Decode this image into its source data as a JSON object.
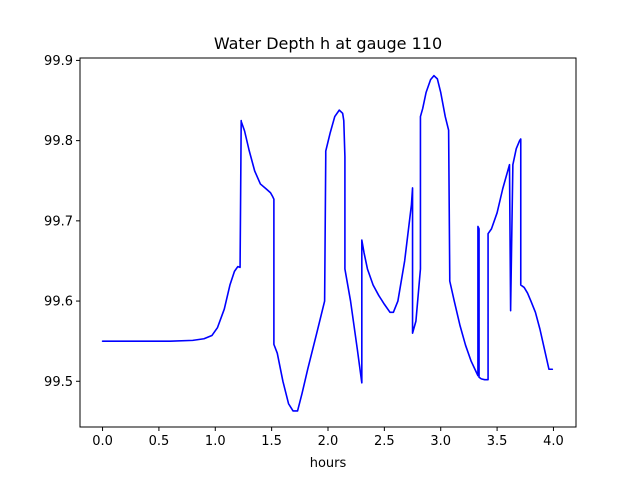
{
  "chart_data": {
    "type": "line",
    "title": "Water Depth h at gauge 110",
    "xlabel": "hours",
    "ylabel": "",
    "xlim": [
      -0.2,
      4.2
    ],
    "ylim": [
      99.443,
      99.903
    ],
    "x_ticks": [
      0.0,
      0.5,
      1.0,
      1.5,
      2.0,
      2.5,
      3.0,
      3.5,
      4.0
    ],
    "x_tick_labels": [
      "0.0",
      "0.5",
      "1.0",
      "1.5",
      "2.0",
      "2.5",
      "3.0",
      "3.5",
      "4.0"
    ],
    "y_ticks": [
      99.5,
      99.6,
      99.7,
      99.8,
      99.9
    ],
    "y_tick_labels": [
      "99.5",
      "99.6",
      "99.7",
      "99.8",
      "99.9"
    ],
    "grid": false,
    "legend": "none",
    "series": [
      {
        "color": "#0000ff",
        "x": [
          0.0,
          0.3,
          0.6,
          0.8,
          0.9,
          0.97,
          1.02,
          1.08,
          1.13,
          1.17,
          1.2,
          1.22,
          1.23,
          1.23,
          1.26,
          1.3,
          1.35,
          1.4,
          1.45,
          1.49,
          1.51,
          1.52,
          1.52,
          1.55,
          1.6,
          1.65,
          1.69,
          1.73,
          1.77,
          1.82,
          1.9,
          1.97,
          1.98,
          1.98,
          2.02,
          2.06,
          2.1,
          2.13,
          2.14,
          2.15,
          2.15,
          2.2,
          2.26,
          2.3,
          2.3,
          2.32,
          2.35,
          2.4,
          2.45,
          2.5,
          2.55,
          2.58,
          2.62,
          2.68,
          2.74,
          2.75,
          2.75,
          2.78,
          2.82,
          2.82,
          2.84,
          2.87,
          2.91,
          2.94,
          2.97,
          3.0,
          3.04,
          3.07,
          3.08,
          3.08,
          3.12,
          3.17,
          3.22,
          3.27,
          3.32,
          3.33,
          3.33,
          3.34,
          3.34,
          3.36,
          3.39,
          3.42,
          3.42,
          3.45,
          3.5,
          3.55,
          3.59,
          3.61,
          3.62,
          3.62,
          3.64,
          3.67,
          3.7,
          3.71,
          3.71,
          3.74,
          3.77,
          3.8,
          3.84,
          3.88,
          3.92,
          3.96,
          3.99
        ],
        "y": [
          99.55,
          99.55,
          99.55,
          99.551,
          99.553,
          99.557,
          99.567,
          99.59,
          99.62,
          99.637,
          99.643,
          99.642,
          99.825,
          99.824,
          99.812,
          99.788,
          99.762,
          99.746,
          99.74,
          99.735,
          99.73,
          99.727,
          99.546,
          99.535,
          99.5,
          99.472,
          99.463,
          99.463,
          99.485,
          99.515,
          99.56,
          99.6,
          99.78,
          99.787,
          99.81,
          99.83,
          99.838,
          99.834,
          99.825,
          99.78,
          99.64,
          99.6,
          99.54,
          99.498,
          99.676,
          99.66,
          99.64,
          99.62,
          99.607,
          99.596,
          99.586,
          99.586,
          99.6,
          99.65,
          99.72,
          99.741,
          99.56,
          99.575,
          99.64,
          99.83,
          99.84,
          99.86,
          99.876,
          99.881,
          99.877,
          99.86,
          99.83,
          99.813,
          99.63,
          99.625,
          99.6,
          99.57,
          99.545,
          99.525,
          99.51,
          99.507,
          99.693,
          99.69,
          99.505,
          99.503,
          99.502,
          99.502,
          99.684,
          99.69,
          99.71,
          99.74,
          99.76,
          99.77,
          99.588,
          99.59,
          99.77,
          99.79,
          99.8,
          99.802,
          99.62,
          99.617,
          99.61,
          99.6,
          99.586,
          99.565,
          99.54,
          99.515,
          99.515
        ]
      }
    ]
  }
}
